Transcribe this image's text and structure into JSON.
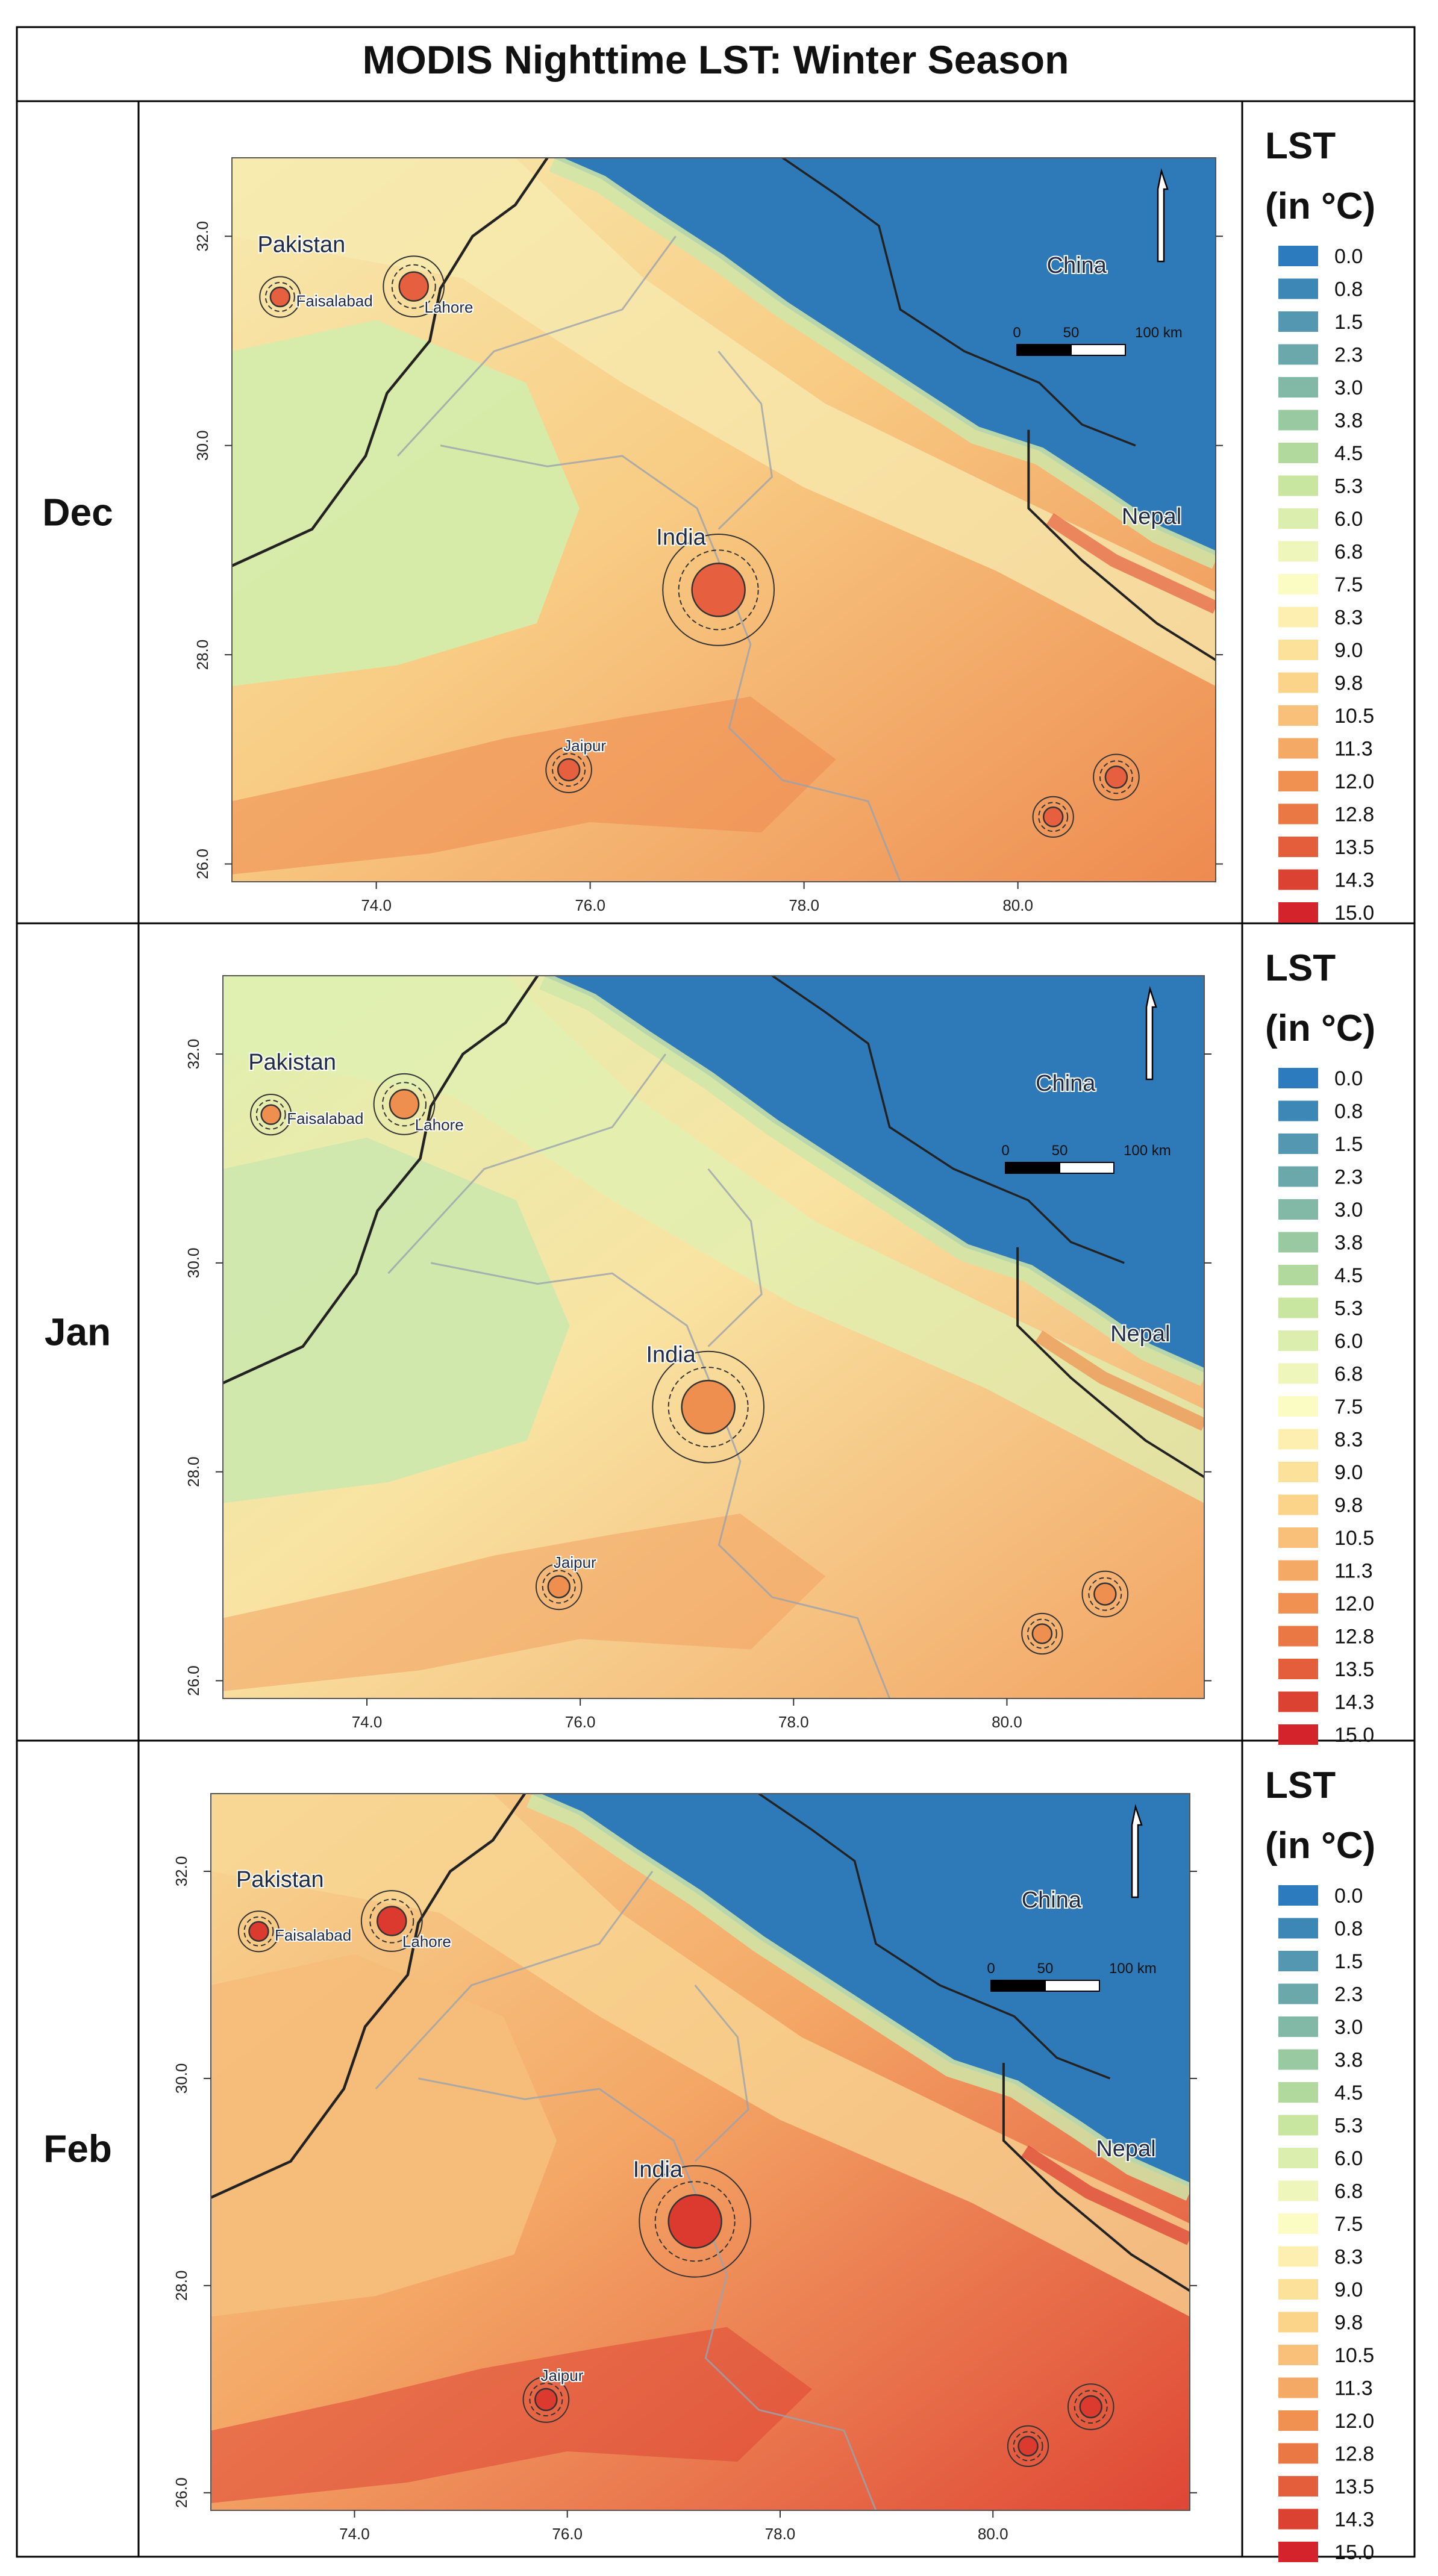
{
  "figure": {
    "title": "MODIS Nighttime LST: Winter Season"
  },
  "legend": {
    "title_line1": "LST",
    "title_line2": "(in °C)",
    "entries": [
      {
        "label": "0.0",
        "color": "#2b7bbe"
      },
      {
        "label": "0.8",
        "color": "#3d87b7"
      },
      {
        "label": "1.5",
        "color": "#5397b1"
      },
      {
        "label": "2.3",
        "color": "#6aa8ab"
      },
      {
        "label": "3.0",
        "color": "#82b9a6"
      },
      {
        "label": "3.8",
        "color": "#99c9a1"
      },
      {
        "label": "4.5",
        "color": "#b1d99d"
      },
      {
        "label": "5.3",
        "color": "#c8e6a0"
      },
      {
        "label": "6.0",
        "color": "#dceeae"
      },
      {
        "label": "6.8",
        "color": "#eef6bb"
      },
      {
        "label": "7.5",
        "color": "#fbfbc4"
      },
      {
        "label": "8.3",
        "color": "#fcefb0"
      },
      {
        "label": "9.0",
        "color": "#fce19b"
      },
      {
        "label": "9.8",
        "color": "#fbd389"
      },
      {
        "label": "10.5",
        "color": "#f8c078"
      },
      {
        "label": "11.3",
        "color": "#f4a964"
      },
      {
        "label": "12.0",
        "color": "#f09152"
      },
      {
        "label": "12.8",
        "color": "#ea7845"
      },
      {
        "label": "13.5",
        "color": "#e45e3c"
      },
      {
        "label": "14.3",
        "color": "#dc4232"
      },
      {
        "label": "15.0",
        "color": "#d4232b"
      }
    ]
  },
  "panels": [
    {
      "month": "Dec",
      "lowland_color": "#f8cc84",
      "plains_west_color": "#d5ecab",
      "foothill_color": "#f7ebb0",
      "hot_color": "#ee8a50",
      "city_color": "#e66040"
    },
    {
      "month": "Jan",
      "lowland_color": "#f9e3a2",
      "plains_west_color": "#cfe8ad",
      "foothill_color": "#dff0b1",
      "hot_color": "#f2a363",
      "city_color": "#ef8f4f"
    },
    {
      "month": "Feb",
      "lowland_color": "#f4a766",
      "plains_west_color": "#f6bd7a",
      "foothill_color": "#f8d794",
      "hot_color": "#df4635",
      "city_color": "#dc3a2e"
    }
  ],
  "map": {
    "snow_color": "#2e7ab9",
    "labels": {
      "pakistan": "Pakistan",
      "china": "China",
      "india": "India",
      "nepal": "Nepal",
      "faisalabad": "Faisalabad",
      "lahore": "Lahore",
      "jaipur": "Jaipur"
    },
    "x_ticks": [
      "74.0",
      "76.0",
      "78.0",
      "80.0"
    ],
    "y_ticks": [
      "32.0",
      "30.0",
      "28.0",
      "26.0"
    ],
    "scalebar": [
      "0",
      "50",
      "100 km"
    ]
  }
}
